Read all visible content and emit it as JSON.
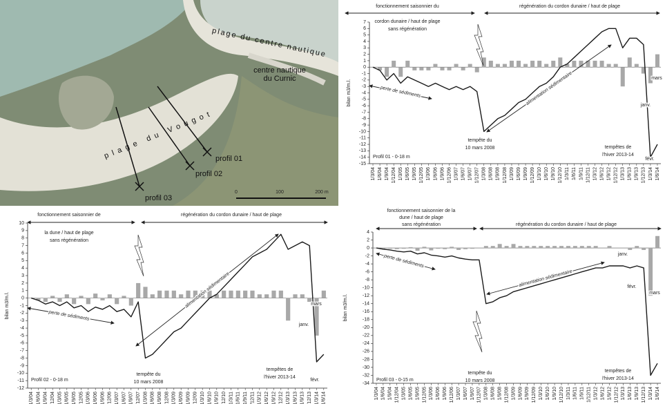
{
  "map": {
    "beach_north": "plage du centre nautique",
    "center": [
      "centre nautique",
      "du Curnic"
    ],
    "beach_south": "plage du Vougot",
    "profiles": [
      "profil 01",
      "profil 02",
      "profil 03"
    ],
    "scale_labels": [
      "0",
      "100",
      "200 m"
    ]
  },
  "chart_data": [
    {
      "type": "combo",
      "y_label": "bilan m3/m.l.",
      "categories": [
        "1/3/04",
        "1/6/04",
        "1/9/04",
        "1/12/04",
        "1/3/05",
        "1/6/05",
        "1/9/05",
        "1/12/05",
        "1/3/06",
        "1/6/06",
        "1/9/06",
        "1/12/06",
        "1/3/07",
        "1/6/07",
        "1/9/07",
        "1/12/07",
        "1/3/08",
        "1/6/08",
        "1/9/08",
        "1/12/08",
        "1/3/09",
        "1/6/09",
        "1/9/09",
        "1/12/09",
        "1/3/10",
        "1/6/10",
        "1/9/10",
        "1/12/10",
        "1/3/11",
        "1/6/11",
        "1/9/11",
        "1/12/11",
        "1/3/12",
        "1/6/12",
        "1/9/12",
        "1/12/12",
        "1/3/13",
        "1/6/13",
        "1/9/13",
        "1/12/13",
        "1/3/14",
        "1/6/14"
      ],
      "series": [
        {
          "type": "bar",
          "color": "#a8a8a8",
          "values": [
            0,
            -0.5,
            -1.5,
            1,
            -1.5,
            1,
            -0.5,
            -0.5,
            -0.5,
            0.5,
            -0.5,
            -0.5,
            0.5,
            -0.5,
            0.5,
            -0.8,
            1.5,
            1,
            0.5,
            0.5,
            1,
            1,
            0.5,
            1,
            1,
            0.5,
            1,
            1.5,
            0.5,
            1,
            1,
            1,
            1,
            1,
            0.5,
            0.5,
            -3,
            1.5,
            0.5,
            -1,
            -2.5,
            2
          ]
        },
        {
          "type": "line",
          "color": "#1a1a1a",
          "values": [
            0,
            -0.5,
            -2,
            -1,
            -2.5,
            -1.5,
            -2,
            -2.5,
            -3,
            -2.5,
            -3,
            -3.5,
            -3,
            -3.5,
            -3,
            -3.8,
            -10,
            -9,
            -8,
            -7.5,
            -6.5,
            -5.5,
            -5,
            -4,
            -3,
            -2.5,
            -1.5,
            0,
            0.5,
            1.5,
            2.5,
            3.5,
            4.5,
            5.5,
            6,
            6,
            3,
            4.5,
            4.5,
            3.5,
            -14,
            -12
          ]
        }
      ],
      "ylim": [
        -15,
        7
      ],
      "yticks": [
        -15,
        -14,
        -13,
        -12,
        -11,
        -10,
        -9,
        -8,
        -7,
        -6,
        -5,
        -4,
        -3,
        -2,
        -1,
        0,
        1,
        2,
        3,
        4,
        5,
        6,
        7
      ],
      "annotations": {
        "phase_1": [
          "fonctionnement saisonnier du",
          "cordon dunaire / haut de plage",
          "sans régénération"
        ],
        "phase_2": [
          "régénération du cordon dunaire / haut de plage"
        ],
        "loss": [
          "perte de sédiments"
        ],
        "gain": [
          "alimentation sédimentaire"
        ],
        "storm_2008": [
          "tempête du",
          "10 mars 2008"
        ],
        "storm_2014": [
          "tempêtes de",
          "l'hiver 2013-14"
        ],
        "jan": [
          "janv."
        ],
        "feb": [
          "févr."
        ],
        "mar": [
          "mars"
        ],
        "profile": [
          "Profil 01 - 0-18 m"
        ]
      }
    },
    {
      "type": "combo",
      "y_label": "bilan m3/m.l.",
      "categories": [
        "1/3/04",
        "1/6/04",
        "1/9/04",
        "1/12/04",
        "1/3/05",
        "1/6/05",
        "1/9/05",
        "1/12/05",
        "1/3/06",
        "1/6/06",
        "1/9/06",
        "1/12/06",
        "1/3/07",
        "1/6/07",
        "1/9/07",
        "1/12/07",
        "1/3/08",
        "1/6/08",
        "1/9/08",
        "1/12/08",
        "1/3/09",
        "1/6/09",
        "1/9/09",
        "1/12/09",
        "1/3/10",
        "1/6/10",
        "1/9/10",
        "1/12/10",
        "1/3/11",
        "1/6/11",
        "1/9/11",
        "1/12/11",
        "1/3/12",
        "1/6/12",
        "1/9/12",
        "1/12/12",
        "1/3/13",
        "1/6/13",
        "1/9/13",
        "1/12/13",
        "1/3/14",
        "1/6/14"
      ],
      "series": [
        {
          "type": "bar",
          "color": "#a8a8a8",
          "values": [
            0,
            -0.3,
            -0.5,
            0.3,
            -0.5,
            0.5,
            -0.8,
            0.3,
            -0.8,
            0.6,
            -0.3,
            0.5,
            -0.8,
            0.3,
            -1,
            2,
            1.5,
            0.5,
            1,
            1,
            1,
            0.5,
            1,
            1,
            1,
            1,
            0.5,
            1,
            1,
            1,
            1,
            1,
            0.5,
            0.5,
            1,
            1,
            -3,
            0.5,
            0.5,
            -0.5,
            -5,
            1
          ]
        },
        {
          "type": "line",
          "color": "#1a1a1a",
          "values": [
            0,
            -0.3,
            -0.8,
            -0.5,
            -1,
            -0.5,
            -1.3,
            -1,
            -1.8,
            -1.2,
            -1.5,
            -1,
            -1.8,
            -1.5,
            -2.5,
            -0.5,
            -8,
            -7.5,
            -6.5,
            -5.5,
            -4.5,
            -4,
            -3,
            -2,
            -1,
            0,
            0.5,
            1.5,
            2.5,
            3.5,
            4.5,
            5.5,
            6,
            6.5,
            7.5,
            8.5,
            6.5,
            7,
            7.5,
            7,
            -8.5,
            -7.5
          ]
        }
      ],
      "ylim": [
        -12,
        10
      ],
      "yticks": [
        -12,
        -11,
        -10,
        -9,
        -8,
        -7,
        -6,
        -5,
        -4,
        -3,
        -2,
        -1,
        0,
        1,
        2,
        3,
        4,
        5,
        6,
        7,
        8,
        9,
        10
      ],
      "annotations": {
        "phase_1": [
          "fonctionnement saisonnier de",
          "la dune / haut de plage",
          "sans régénération"
        ],
        "phase_2": [
          "régénération du cordon dunaire / haut de plage"
        ],
        "loss": [
          "perte de sédiments"
        ],
        "gain": [
          "alimentation sédimentaire"
        ],
        "storm_2008": [
          "tempête du",
          "10 mars 2008"
        ],
        "storm_2014": [
          "tempêtes de",
          "l'hiver 2013-14"
        ],
        "jan": [
          "janv."
        ],
        "feb": [
          "févr."
        ],
        "mar": [
          "mars"
        ],
        "profile": [
          "Profil 02 - 0-18 m"
        ]
      }
    },
    {
      "type": "combo",
      "y_label": "bilan m3/m.l.",
      "categories": [
        "1/3/04",
        "1/6/04",
        "1/9/04",
        "1/12/04",
        "1/3/05",
        "1/6/05",
        "1/9/05",
        "1/12/05",
        "1/3/06",
        "1/6/06",
        "1/9/06",
        "1/12/06",
        "1/3/07",
        "1/6/07",
        "1/9/07",
        "1/12/07",
        "1/3/08",
        "1/6/08",
        "1/9/08",
        "1/12/08",
        "1/3/09",
        "1/6/09",
        "1/9/09",
        "1/12/09",
        "1/3/10",
        "1/6/10",
        "1/9/10",
        "1/12/10",
        "1/3/11",
        "1/6/11",
        "1/9/11",
        "1/12/11",
        "1/3/12",
        "1/6/12",
        "1/9/12",
        "1/12/12",
        "1/3/13",
        "1/6/13",
        "1/9/13",
        "1/12/13",
        "1/3/14",
        "1/6/14"
      ],
      "series": [
        {
          "type": "bar",
          "color": "#a8a8a8",
          "values": [
            0,
            -0.3,
            -0.2,
            -0.3,
            -0.2,
            0.2,
            -0.7,
            0.3,
            -0.6,
            -0.2,
            -0.3,
            0.3,
            -0.5,
            -0.3,
            -0.2,
            0,
            0.5,
            0.5,
            1,
            0.5,
            1,
            0.5,
            0.5,
            0.5,
            0.5,
            0.5,
            0.5,
            0.5,
            0.5,
            0.5,
            0.5,
            0.5,
            0.5,
            0,
            0.5,
            0,
            0,
            -0.5,
            0.5,
            -0.5,
            -12,
            3
          ]
        },
        {
          "type": "line",
          "color": "#1a1a1a",
          "values": [
            0,
            -0.3,
            -0.5,
            -0.8,
            -1,
            -0.8,
            -1.5,
            -1.2,
            -1.8,
            -2,
            -2.3,
            -2,
            -2.5,
            -2.8,
            -3,
            -3,
            -14,
            -13.5,
            -12.5,
            -12,
            -11,
            -10.5,
            -10,
            -9.5,
            -9,
            -8.5,
            -8,
            -7.5,
            -7,
            -6.5,
            -6,
            -5.5,
            -5,
            -5,
            -4.5,
            -4.5,
            -4.5,
            -5,
            -4.5,
            -5,
            -32,
            -29
          ]
        }
      ],
      "ylim": [
        -34,
        4
      ],
      "yticks": [
        -34,
        -32,
        -30,
        -28,
        -26,
        -24,
        -22,
        -20,
        -18,
        -16,
        -14,
        -12,
        -10,
        -8,
        -6,
        -4,
        -2,
        0,
        2,
        4
      ],
      "annotations": {
        "phase_1": [
          "fonctionnement saisonnier de la",
          "dune / haut de plage",
          "sans régénération"
        ],
        "phase_2": [
          "régénération du cordon dunaire / haut de plage"
        ],
        "loss": [
          "perte de sédiments"
        ],
        "gain": [
          "alimentation sédimentaire"
        ],
        "storm_2008": [
          "tempête du",
          "10 mars 2008"
        ],
        "storm_2014": [
          "tempêtes de",
          "l'hiver 2013-14"
        ],
        "jan": [
          "janv."
        ],
        "feb": [
          "févr."
        ],
        "mar": [
          "mars"
        ],
        "profile": [
          "Profil 03 - 0-15 m"
        ]
      }
    }
  ]
}
